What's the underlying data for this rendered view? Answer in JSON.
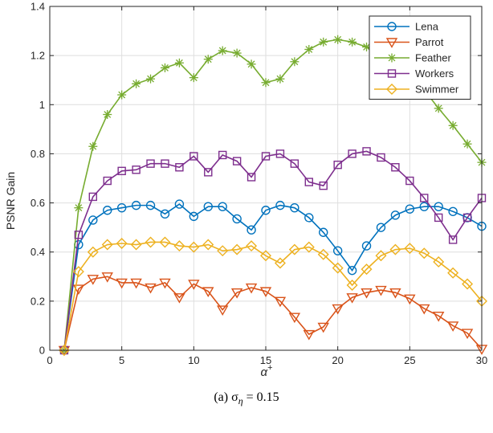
{
  "chart_data": {
    "type": "line",
    "caption": "(a) σ",
    "caption_sub": "η",
    "caption_value": "= 0.15",
    "ylabel": "PSNR Gain",
    "xlabel_main": "α",
    "xlabel_sup": "+",
    "xlim": [
      0,
      30
    ],
    "ylim": [
      0,
      1.4
    ],
    "xticks": [
      0,
      5,
      10,
      15,
      20,
      25,
      30
    ],
    "yticks": [
      0,
      0.2,
      0.4,
      0.6,
      0.8,
      1,
      1.2,
      1.4
    ],
    "grid": true,
    "legend_position": "top-right",
    "x": [
      1,
      2,
      3,
      4,
      5,
      6,
      7,
      8,
      9,
      10,
      11,
      12,
      13,
      14,
      15,
      16,
      17,
      18,
      19,
      20,
      21,
      22,
      23,
      24,
      25,
      26,
      27,
      28,
      29,
      30
    ],
    "series": [
      {
        "name": "Lena",
        "color": "#0072BD",
        "marker": "circle",
        "values": [
          0,
          0.43,
          0.53,
          0.57,
          0.58,
          0.59,
          0.59,
          0.555,
          0.595,
          0.545,
          0.585,
          0.585,
          0.535,
          0.49,
          0.57,
          0.59,
          0.58,
          0.54,
          0.48,
          0.405,
          0.325,
          0.425,
          0.5,
          0.55,
          0.575,
          0.585,
          0.585,
          0.565,
          0.54,
          0.505
        ]
      },
      {
        "name": "Parrot",
        "color": "#D95319",
        "marker": "triangle-down",
        "values": [
          0,
          0.25,
          0.29,
          0.3,
          0.275,
          0.275,
          0.255,
          0.275,
          0.215,
          0.27,
          0.24,
          0.165,
          0.235,
          0.255,
          0.24,
          0.2,
          0.135,
          0.065,
          0.095,
          0.17,
          0.215,
          0.235,
          0.245,
          0.235,
          0.21,
          0.17,
          0.14,
          0.1,
          0.07,
          0.005
        ]
      },
      {
        "name": "Feather",
        "color": "#77AC30",
        "marker": "asterisk",
        "values": [
          0,
          0.58,
          0.83,
          0.96,
          1.04,
          1.085,
          1.105,
          1.15,
          1.17,
          1.11,
          1.185,
          1.22,
          1.21,
          1.165,
          1.09,
          1.105,
          1.175,
          1.225,
          1.255,
          1.265,
          1.255,
          1.235,
          1.205,
          1.155,
          1.105,
          1.06,
          0.985,
          0.915,
          0.84,
          0.765
        ]
      },
      {
        "name": "Workers",
        "color": "#7E2F8E",
        "marker": "square",
        "values": [
          0,
          0.47,
          0.625,
          0.69,
          0.73,
          0.735,
          0.76,
          0.76,
          0.745,
          0.79,
          0.725,
          0.795,
          0.77,
          0.705,
          0.79,
          0.8,
          0.76,
          0.685,
          0.67,
          0.755,
          0.8,
          0.81,
          0.785,
          0.745,
          0.69,
          0.62,
          0.54,
          0.45,
          0.54,
          0.62
        ]
      },
      {
        "name": "Swimmer",
        "color": "#EDB120",
        "marker": "diamond",
        "values": [
          0,
          0.32,
          0.4,
          0.43,
          0.435,
          0.43,
          0.44,
          0.44,
          0.425,
          0.42,
          0.43,
          0.405,
          0.41,
          0.425,
          0.385,
          0.355,
          0.41,
          0.42,
          0.39,
          0.335,
          0.265,
          0.33,
          0.385,
          0.41,
          0.415,
          0.395,
          0.36,
          0.315,
          0.27,
          0.2
        ]
      }
    ]
  }
}
